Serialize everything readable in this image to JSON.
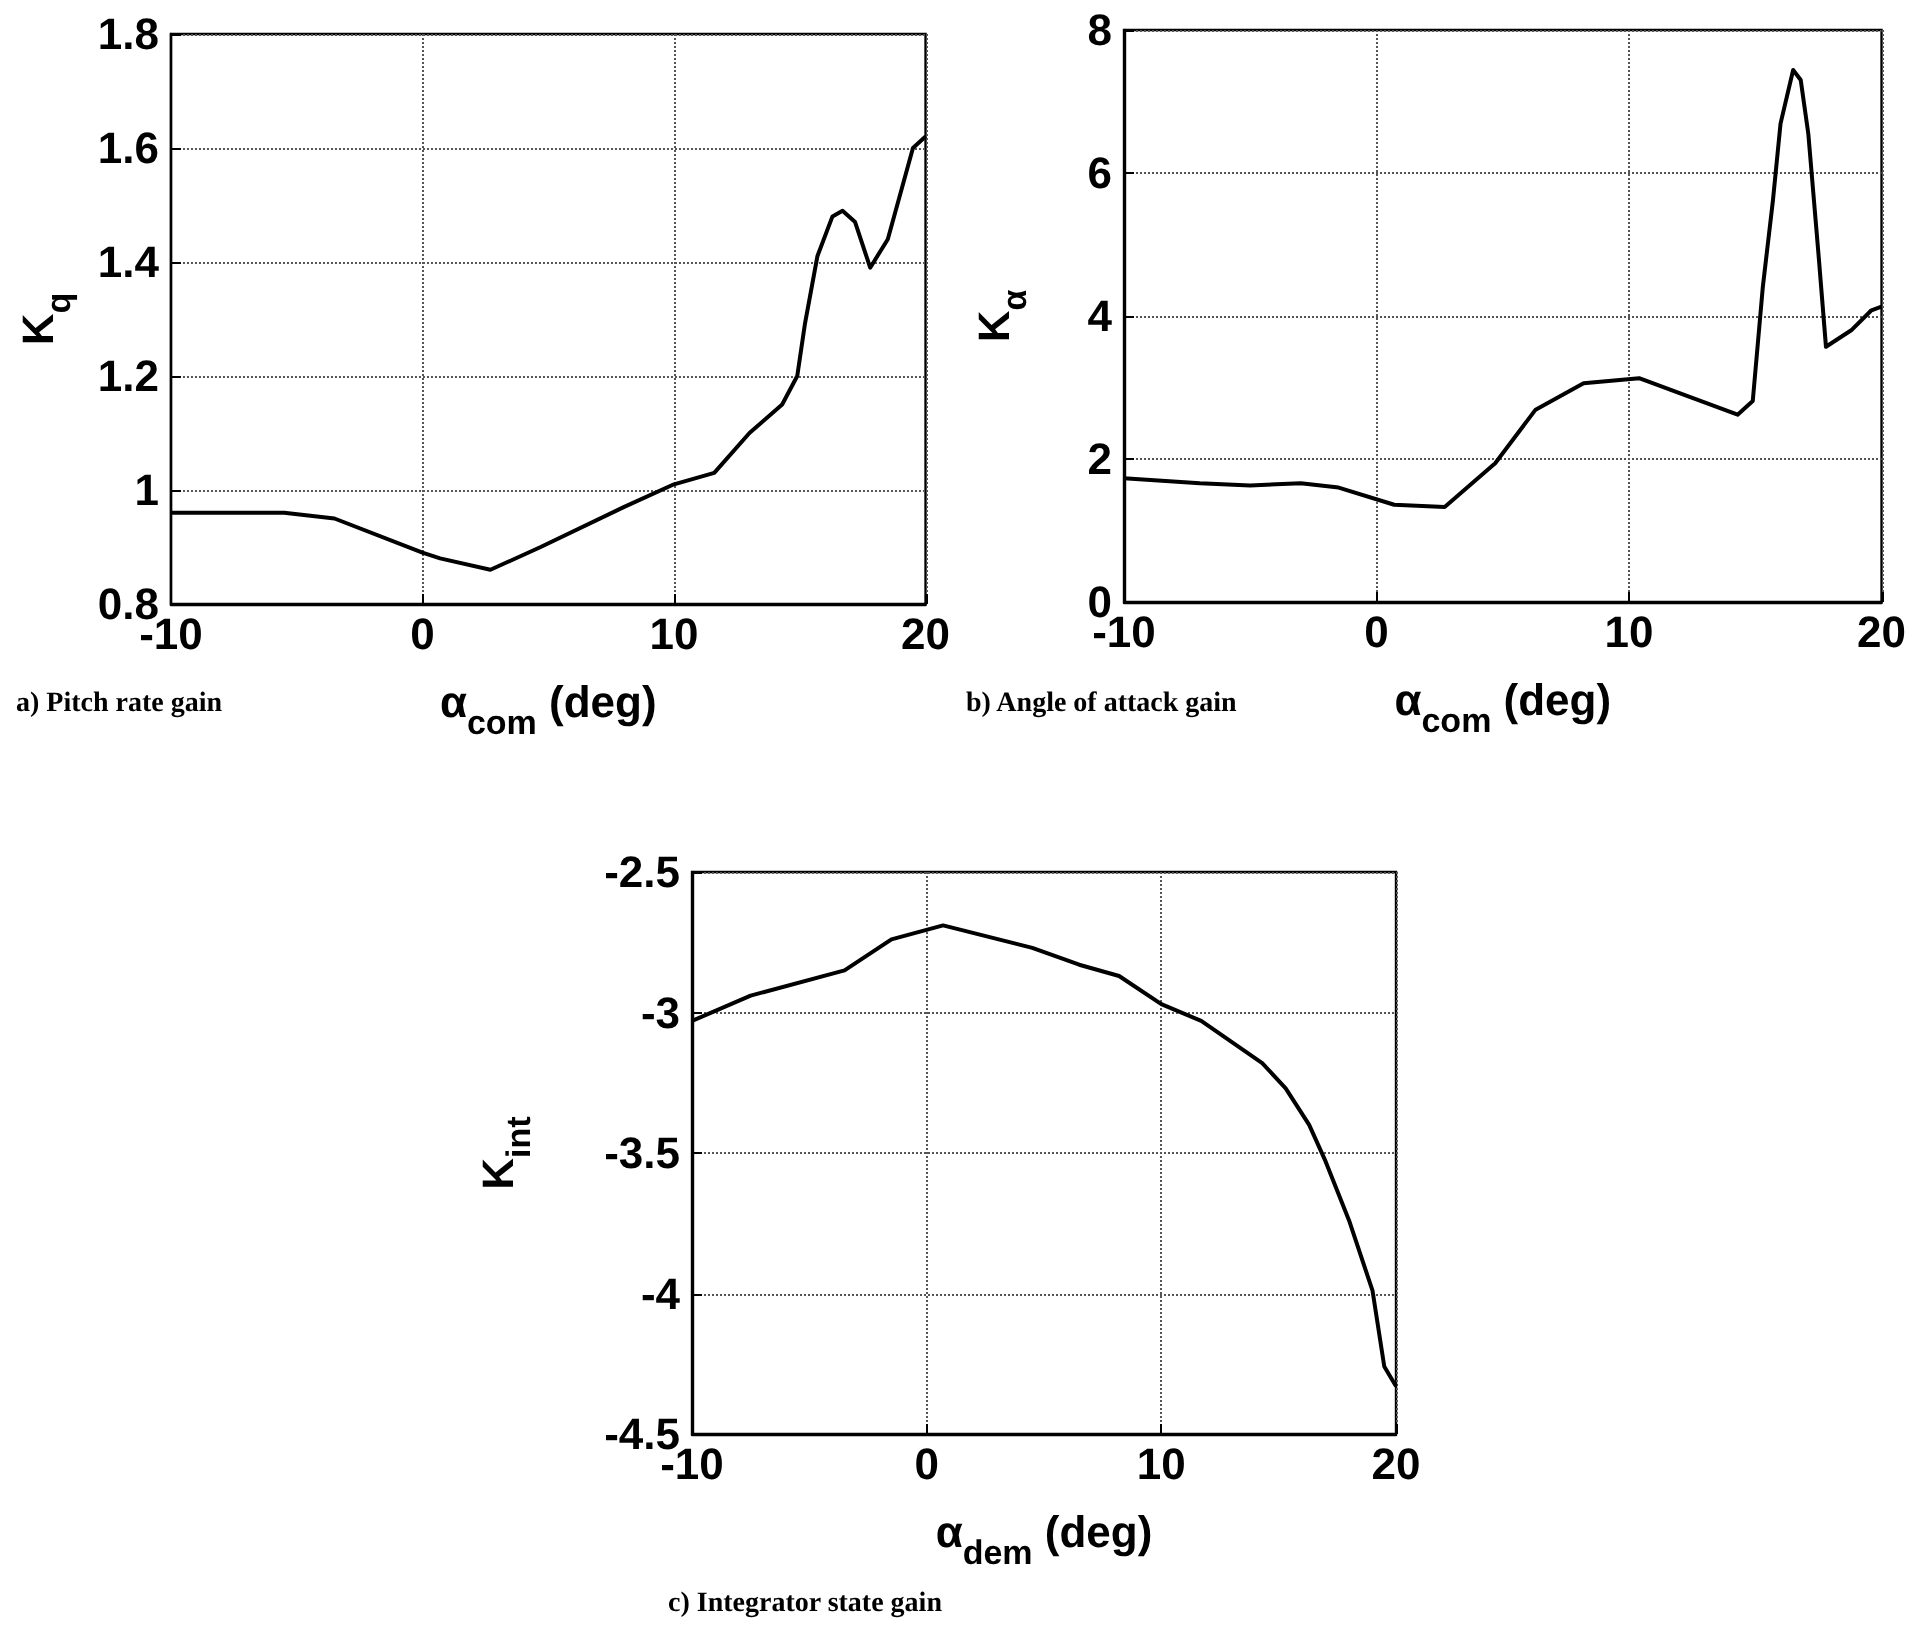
{
  "chart_data": [
    {
      "type": "line",
      "xlabel": "α$_{com}$ (deg)",
      "ylabel": "K$_{q}$",
      "annotations": [
        "a) Pitch rate gain"
      ],
      "color": "#000000",
      "marker": "none",
      "grid": true,
      "xlim": [
        -10,
        20
      ],
      "ylim": [
        0.8,
        1.8
      ],
      "xticks": [
        -10,
        0,
        10,
        20
      ],
      "yticks": [
        0.8,
        1,
        1.2,
        1.4,
        1.6,
        1.8
      ],
      "x": [
        -10,
        -5.5,
        -3.5,
        0,
        0.7,
        2.7,
        4.7,
        8,
        10,
        11.6,
        13,
        14.3,
        14.9,
        15.2,
        15.7,
        16.3,
        16.7,
        17.2,
        17.8,
        18.5,
        19.5,
        20
      ],
      "values": [
        0.96,
        0.96,
        0.95,
        0.89,
        0.88,
        0.86,
        0.9,
        0.97,
        1.01,
        1.03,
        1.1,
        1.15,
        1.2,
        1.29,
        1.41,
        1.48,
        1.49,
        1.47,
        1.39,
        1.44,
        1.6,
        1.62
      ]
    },
    {
      "type": "line",
      "xlabel": "α$_{com}$ (deg)",
      "ylabel": "K$_{α}$",
      "annotations": [
        "b) Angle of attack gain"
      ],
      "color": "#000000",
      "marker": "none",
      "grid": true,
      "xlim": [
        -10,
        20
      ],
      "ylim": [
        0,
        8
      ],
      "xticks": [
        -10,
        0,
        10,
        20
      ],
      "yticks": [
        0,
        2,
        4,
        6,
        8
      ],
      "x": [
        -10,
        -7,
        -5,
        -3,
        -1.5,
        0.7,
        2.7,
        4.7,
        6.3,
        8.2,
        10.4,
        12,
        14.3,
        14.9,
        15.3,
        15.7,
        16,
        16.5,
        16.8,
        17.1,
        17.5,
        17.8,
        18.8,
        19.6,
        20
      ],
      "values": [
        1.73,
        1.66,
        1.63,
        1.66,
        1.6,
        1.36,
        1.33,
        1.94,
        2.69,
        3.06,
        3.13,
        2.92,
        2.62,
        2.81,
        4.41,
        5.62,
        6.69,
        7.44,
        7.3,
        6.55,
        4.88,
        3.57,
        3.8,
        4.08,
        4.13
      ]
    },
    {
      "type": "line",
      "xlabel": "α$_{dem}$ (deg)",
      "ylabel": "K$_{int}$",
      "annotations": [
        "c) Integrator state gain"
      ],
      "color": "#000000",
      "marker": "none",
      "grid": true,
      "xlim": [
        -10,
        20
      ],
      "ylim": [
        -4.5,
        -2.5
      ],
      "xticks": [
        -10,
        0,
        10,
        20
      ],
      "yticks": [
        -4.5,
        -4,
        -3.5,
        -3,
        -2.5
      ],
      "x": [
        -10,
        -7.5,
        -3.5,
        -1.5,
        0.7,
        4.5,
        6.5,
        8.2,
        10,
        11.7,
        14.3,
        15.3,
        16.3,
        17,
        18,
        19,
        19.5,
        20
      ],
      "values": [
        -3.03,
        -2.94,
        -2.85,
        -2.74,
        -2.69,
        -2.77,
        -2.83,
        -2.87,
        -2.97,
        -3.03,
        -3.18,
        -3.27,
        -3.4,
        -3.53,
        -3.74,
        -3.99,
        -4.26,
        -4.33
      ]
    }
  ]
}
